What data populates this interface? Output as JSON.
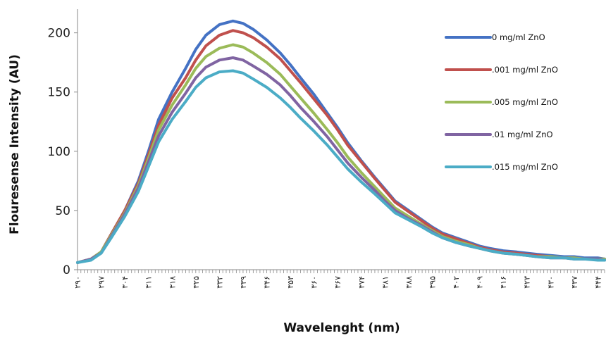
{
  "chart_data": {
    "type": "line",
    "title": "",
    "xlabel": "Wavelenght (nm)",
    "ylabel": "Flouresense Intensity (AU)",
    "xlim": [
      290,
      446
    ],
    "ylim": [
      0,
      220
    ],
    "yticks": [
      0,
      50,
      100,
      150,
      200
    ],
    "xtick_labels": [
      "۲۹۰",
      "۲۹۷",
      "۳۰۴",
      "۳۱۱",
      "۳۱۸",
      "۳۲۵",
      "۳۳۲",
      "۳۳۹",
      "۳۴۶",
      "۳۵۳",
      "۳۶۰",
      "۳۶۷",
      "۳۷۴",
      "۳۸۱",
      "۳۸۸",
      "۳۹۵",
      "۴۰۲",
      "۴۰۹",
      "۴۱۶",
      "۴۲۳",
      "۴۳۰",
      "۴۳۷",
      "۴۴۴"
    ],
    "grid": false,
    "legend_position": "right",
    "x": [
      290,
      294,
      297,
      300,
      304,
      308,
      311,
      314,
      318,
      322,
      325,
      328,
      332,
      336,
      339,
      342,
      346,
      350,
      353,
      356,
      360,
      364,
      367,
      370,
      374,
      378,
      381,
      384,
      388,
      392,
      395,
      398,
      402,
      406,
      409,
      412,
      416,
      420,
      423,
      426,
      430,
      434,
      437,
      440,
      444,
      446
    ],
    "series": [
      {
        "name": "0 mg/ml ZnO",
        "color": "#4472C4",
        "values": [
          6,
          9,
          15,
          30,
          50,
          75,
          100,
          127,
          150,
          170,
          186,
          198,
          207,
          210,
          208,
          203,
          194,
          183,
          173,
          162,
          148,
          132,
          120,
          107,
          92,
          78,
          68,
          58,
          50,
          42,
          36,
          31,
          27,
          23,
          20,
          18,
          16,
          15,
          14,
          13,
          12,
          11,
          11,
          10,
          10,
          9
        ]
      },
      {
        "name": ".001 mg/ml ZnO",
        "color": "#C0504D",
        "values": [
          6,
          9,
          15,
          30,
          50,
          73,
          97,
          122,
          145,
          162,
          177,
          189,
          198,
          202,
          200,
          196,
          188,
          178,
          168,
          158,
          144,
          130,
          118,
          105,
          91,
          77,
          67,
          57,
          49,
          41,
          35,
          30,
          26,
          22,
          19,
          17,
          15,
          14,
          13,
          12,
          11,
          10,
          10,
          9,
          9,
          9
        ]
      },
      {
        "name": ".005 mg/ml ZnO",
        "color": "#9BBB59",
        "values": [
          6,
          9,
          15,
          29,
          48,
          71,
          94,
          118,
          139,
          156,
          170,
          180,
          187,
          190,
          188,
          183,
          175,
          165,
          155,
          145,
          132,
          118,
          107,
          95,
          82,
          70,
          61,
          52,
          45,
          38,
          33,
          28,
          24,
          21,
          18,
          16,
          14,
          13,
          12,
          11,
          11,
          10,
          10,
          9,
          9,
          9
        ]
      },
      {
        "name": ".01 mg/ml ZnO",
        "color": "#8064A2",
        "values": [
          6,
          9,
          14,
          28,
          47,
          69,
          91,
          113,
          133,
          149,
          162,
          171,
          177,
          179,
          177,
          172,
          165,
          156,
          147,
          137,
          125,
          112,
          101,
          90,
          78,
          67,
          58,
          50,
          43,
          37,
          32,
          27,
          23,
          20,
          18,
          16,
          14,
          13,
          12,
          11,
          10,
          10,
          9,
          9,
          9,
          8
        ]
      },
      {
        "name": ".015 mg/ml ZnO",
        "color": "#4BACC6",
        "values": [
          6,
          8,
          14,
          27,
          45,
          66,
          87,
          108,
          127,
          142,
          154,
          162,
          167,
          168,
          166,
          161,
          154,
          145,
          137,
          128,
          117,
          105,
          95,
          85,
          74,
          64,
          56,
          48,
          42,
          36,
          31,
          27,
          23,
          20,
          18,
          16,
          14,
          13,
          12,
          11,
          10,
          10,
          9,
          9,
          8,
          8
        ]
      }
    ]
  }
}
